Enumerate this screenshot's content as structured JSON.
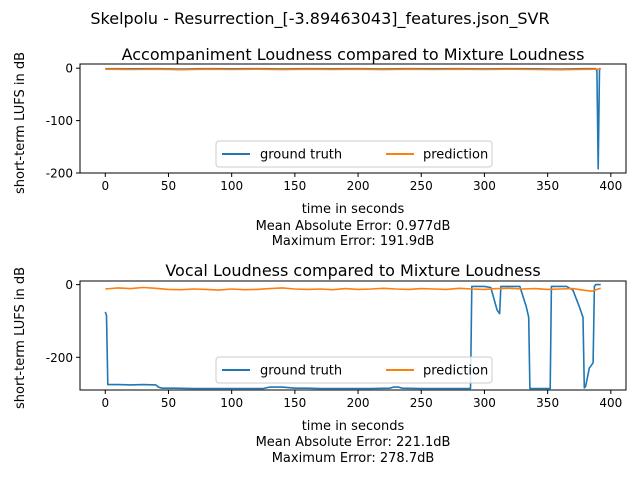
{
  "suptitle": "Skelpolu - Resurrection_[-3.89463043]_features.json_SVR",
  "colors": {
    "ground_truth": "#1f77b4",
    "prediction": "#ff7f0e",
    "axis": "#000000"
  },
  "chart_data": [
    {
      "type": "line",
      "title": "Accompaniment Loudness compared to Mixture Loudness",
      "xlabel": "time in seconds",
      "ylabel": "short-term LUFS in dB",
      "xlim": [
        -20,
        412
      ],
      "ylim": [
        -200,
        8
      ],
      "xticks": [
        0,
        50,
        100,
        150,
        200,
        250,
        300,
        350,
        400
      ],
      "yticks": [
        -200,
        -100,
        0
      ],
      "legend": {
        "placement": "lower center",
        "entries": [
          "ground truth",
          "prediction"
        ]
      },
      "footer": [
        "Mean Absolute Error: 0.977dB",
        "Maximum Error: 191.9dB"
      ],
      "series": [
        {
          "name": "ground truth",
          "color": "#1f77b4",
          "x": [
            0,
            20,
            40,
            60,
            80,
            100,
            120,
            140,
            160,
            180,
            200,
            220,
            240,
            260,
            280,
            300,
            320,
            340,
            360,
            380,
            388,
            389,
            390,
            391,
            392
          ],
          "y": [
            -1,
            -1.2,
            -1,
            -1.5,
            -1,
            -1.2,
            -1,
            -1.3,
            -1,
            -1.2,
            -1,
            -1.4,
            -1,
            -1.2,
            -1,
            -1.3,
            -1,
            -1.2,
            -1.5,
            -1,
            -1,
            -5,
            -192,
            -1,
            -1
          ]
        },
        {
          "name": "prediction",
          "color": "#ff7f0e",
          "x": [
            0,
            20,
            40,
            60,
            80,
            100,
            120,
            140,
            160,
            180,
            200,
            220,
            240,
            260,
            280,
            300,
            320,
            340,
            360,
            380,
            392
          ],
          "y": [
            -2,
            -2.5,
            -2,
            -2.8,
            -2,
            -2.4,
            -2,
            -2.6,
            -2,
            -2.3,
            -2,
            -2.7,
            -2,
            -2.4,
            -2,
            -2.5,
            -2,
            -2.4,
            -2.8,
            -2.2,
            -2
          ]
        }
      ]
    },
    {
      "type": "line",
      "title": "Vocal Loudness compared to Mixture Loudness",
      "xlabel": "time in seconds",
      "ylabel": "short-term LUFS in dB",
      "xlim": [
        -20,
        412
      ],
      "ylim": [
        -290,
        10
      ],
      "xticks": [
        0,
        50,
        100,
        150,
        200,
        250,
        300,
        350,
        400
      ],
      "yticks": [
        -200,
        0
      ],
      "legend": {
        "placement": "lower center",
        "entries": [
          "ground truth",
          "prediction"
        ]
      },
      "footer": [
        "Mean Absolute Error: 221.1dB",
        "Maximum Error: 278.7dB"
      ],
      "series": [
        {
          "name": "ground truth",
          "color": "#1f77b4",
          "x": [
            0,
            1,
            2,
            10,
            20,
            30,
            40,
            42,
            45,
            55,
            70,
            90,
            110,
            125,
            130,
            140,
            150,
            160,
            170,
            190,
            210,
            225,
            228,
            232,
            235,
            250,
            270,
            289,
            290,
            292,
            293,
            295,
            300,
            305,
            310,
            312,
            313,
            315,
            320,
            328,
            333,
            335,
            336,
            340,
            345,
            352,
            353,
            355,
            360,
            365,
            370,
            375,
            378,
            379,
            380,
            383,
            386,
            387,
            388,
            390,
            392
          ],
          "y": [
            -75,
            -85,
            -275,
            -275,
            -276,
            -275,
            -276,
            -282,
            -285,
            -285,
            -286,
            -286,
            -286,
            -286,
            -282,
            -282,
            -285,
            -285,
            -286,
            -286,
            -286,
            -285,
            -282,
            -282,
            -285,
            -286,
            -286,
            -286,
            -5,
            -5,
            -5,
            -5,
            -5,
            -8,
            -70,
            -80,
            -5,
            -5,
            -5,
            -5,
            -60,
            -90,
            -286,
            -286,
            -286,
            -286,
            -5,
            -5,
            -5,
            -5,
            -15,
            -60,
            -90,
            -284,
            -280,
            -230,
            -215,
            -5,
            0,
            0,
            0
          ]
        },
        {
          "name": "prediction",
          "color": "#ff7f0e",
          "x": [
            0,
            10,
            20,
            30,
            40,
            50,
            60,
            70,
            80,
            90,
            100,
            110,
            120,
            130,
            140,
            150,
            160,
            170,
            180,
            190,
            200,
            210,
            220,
            230,
            240,
            250,
            260,
            270,
            280,
            290,
            300,
            310,
            320,
            330,
            340,
            350,
            360,
            370,
            380,
            385,
            390,
            392
          ],
          "y": [
            -12,
            -9,
            -11,
            -8,
            -10,
            -13,
            -14,
            -12,
            -13,
            -15,
            -12,
            -14,
            -13,
            -11,
            -9,
            -12,
            -13,
            -12,
            -14,
            -11,
            -13,
            -12,
            -10,
            -12,
            -13,
            -11,
            -12,
            -13,
            -10,
            -12,
            -13,
            -11,
            -10,
            -12,
            -11,
            -13,
            -12,
            -11,
            -16,
            -18,
            -12,
            -10
          ]
        }
      ]
    }
  ]
}
